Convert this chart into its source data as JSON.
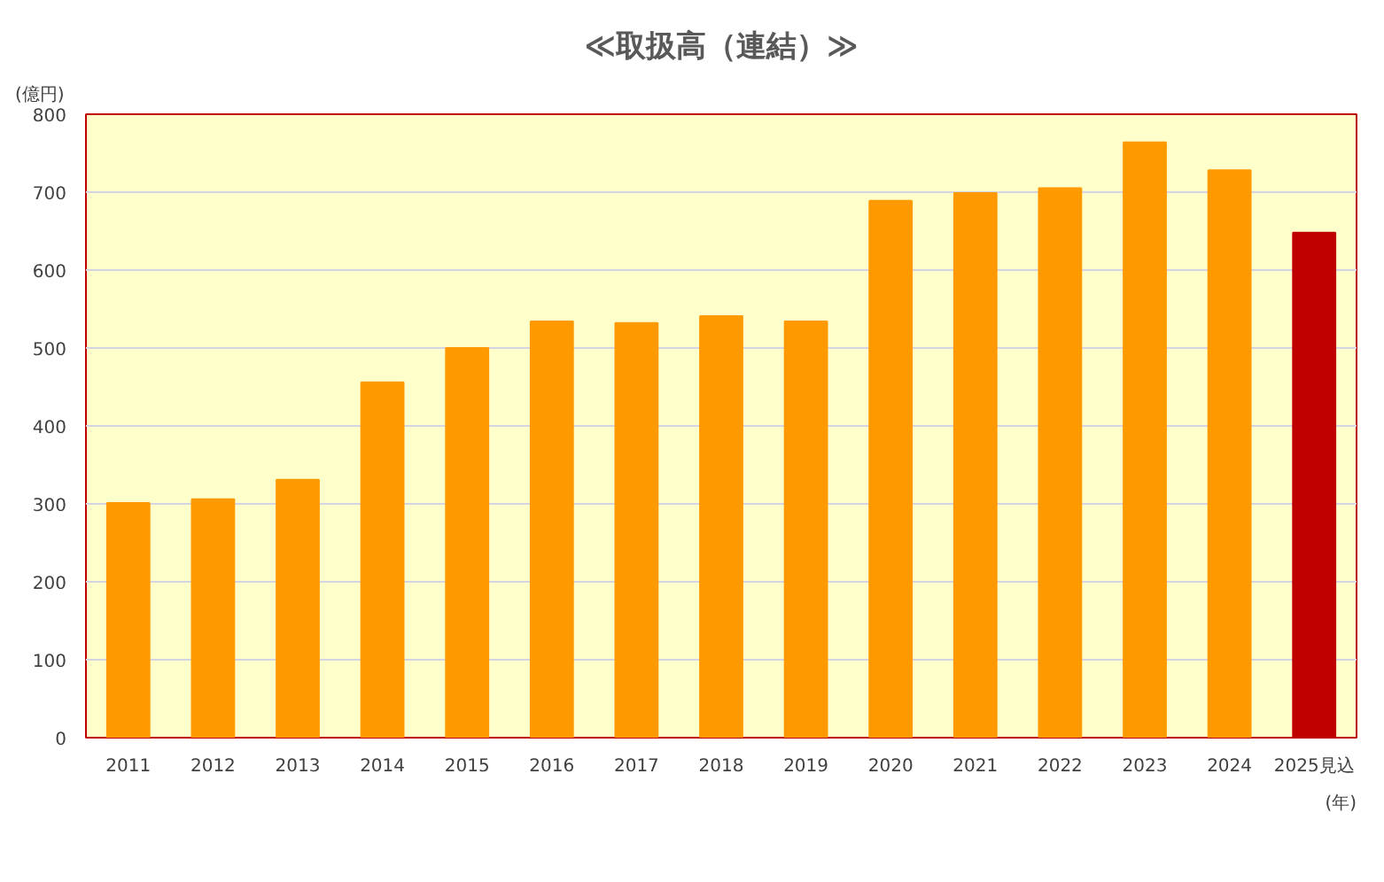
{
  "chart_data": {
    "type": "bar",
    "title": "≪取扱高（連結）≫",
    "ylabel": "(億円)",
    "xlabel": "(年)",
    "categories": [
      "2011",
      "2012",
      "2013",
      "2014",
      "2015",
      "2016",
      "2017",
      "2018",
      "2019",
      "2020",
      "2021",
      "2022",
      "2023",
      "2024",
      "2025見込"
    ],
    "values": [
      301,
      306,
      331,
      456,
      500,
      534,
      532,
      541,
      534,
      689,
      699,
      705,
      764,
      728,
      648
    ],
    "colors": [
      "#ff9900",
      "#ff9900",
      "#ff9900",
      "#ff9900",
      "#ff9900",
      "#ff9900",
      "#ff9900",
      "#ff9900",
      "#ff9900",
      "#ff9900",
      "#ff9900",
      "#ff9900",
      "#ff9900",
      "#ff9900",
      "#c00000"
    ],
    "ylim": [
      0,
      800
    ],
    "yticks": [
      0,
      100,
      200,
      300,
      400,
      500,
      600,
      700,
      800
    ],
    "grid": "y"
  }
}
